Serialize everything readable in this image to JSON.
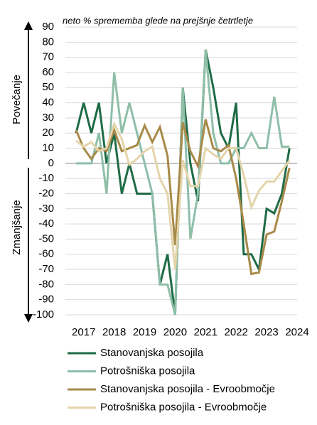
{
  "chart_data": {
    "type": "line",
    "title": "neto % sprememba glede na prejšnje četrtletje",
    "y_up_label": "Povečanje",
    "y_down_label": "Zmanjšanje",
    "x": [
      2016.75,
      2017.0,
      2017.25,
      2017.5,
      2017.75,
      2018.0,
      2018.25,
      2018.5,
      2018.75,
      2019.0,
      2019.25,
      2019.5,
      2019.75,
      2020.0,
      2020.25,
      2020.5,
      2020.75,
      2021.0,
      2021.25,
      2021.5,
      2021.75,
      2022.0,
      2022.25,
      2022.5,
      2022.75,
      2023.0,
      2023.25,
      2023.5,
      2023.75
    ],
    "xlim": [
      2016.4,
      2024.0
    ],
    "xticks": [
      2017,
      2018,
      2019,
      2020,
      2021,
      2022,
      2023,
      2024
    ],
    "ylim": [
      -100,
      90
    ],
    "yticks": [
      -100,
      -90,
      -80,
      -70,
      -60,
      -50,
      -40,
      -30,
      -20,
      -10,
      0,
      10,
      20,
      30,
      40,
      50,
      60,
      70,
      80,
      90
    ],
    "grid": true,
    "series": [
      {
        "name": "Stanovanjska posojila",
        "color": "#1e6b45",
        "values": [
          20,
          40,
          20,
          40,
          0,
          20,
          -20,
          0,
          -20,
          -20,
          -20,
          -80,
          -60,
          -100,
          50,
          0,
          -25,
          75,
          50,
          20,
          10,
          40,
          -60,
          -60,
          -70,
          -30,
          -33,
          -20,
          10
        ]
      },
      {
        "name": "Potrošniška posojila",
        "color": "#8fbea9",
        "values": [
          0,
          0,
          0,
          20,
          -20,
          60,
          20,
          40,
          20,
          0,
          -20,
          -80,
          -80,
          -100,
          50,
          -50,
          -20,
          75,
          20,
          0,
          0,
          10,
          10,
          20,
          10,
          10,
          44,
          11,
          11
        ]
      },
      {
        "name": "Stanovanjska posojila - Evroobmočje",
        "color": "#a88a48",
        "values": [
          22,
          10,
          3,
          10,
          8,
          22,
          8,
          10,
          12,
          25,
          14,
          24,
          5,
          -54,
          27,
          8,
          -2,
          29,
          10,
          8,
          12,
          -10,
          -40,
          -73,
          -72,
          -47,
          -45,
          -25,
          -3
        ]
      },
      {
        "name": "Potrošniška posojila - Evroobmočje",
        "color": "#e4d4aa",
        "values": [
          15,
          11,
          14,
          8,
          10,
          26,
          16,
          -1,
          3,
          8,
          11,
          -10,
          -20,
          -70,
          2,
          -15,
          -15,
          10,
          6,
          3,
          10,
          10,
          -8,
          -29,
          -18,
          -12,
          -12,
          -5,
          2
        ]
      }
    ]
  }
}
